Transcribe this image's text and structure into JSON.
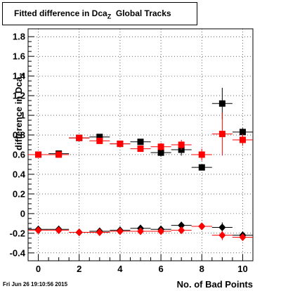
{
  "title": "Fitted difference in Dca",
  "title_sub": "Z",
  "title_suffix": "  Global Tracks",
  "ylabel": "difference in Dca",
  "ylabel_sub": "Z",
  "xlabel": "No. of Bad Points",
  "datestamp": "Fri Jun 26 19:10:56 2015",
  "chart_data": {
    "type": "scatter",
    "title": "Fitted difference in Dca Z Global Tracks",
    "xlabel": "No. of Bad Points",
    "ylabel": "difference in Dca Z",
    "xlim": [
      -0.5,
      10.5
    ],
    "ylim": [
      -0.48,
      1.88
    ],
    "xticks": [
      0,
      2,
      4,
      6,
      8,
      10
    ],
    "yticks": [
      -0.4,
      -0.2,
      0,
      0.2,
      0.4,
      0.6,
      0.8,
      1,
      1.2,
      1.4,
      1.6,
      1.8
    ],
    "ytick_labels": [
      "-0.4",
      "-0.2",
      "0",
      "0.2",
      "0.4",
      "0.6",
      "0.8",
      "1",
      "1.2",
      "1.4",
      "1.6",
      "1.8"
    ],
    "grid": true,
    "series": [
      {
        "marker": "square",
        "color": "#000000",
        "x": [
          0,
          1,
          2,
          3,
          4,
          5,
          6,
          7,
          8,
          9,
          10
        ],
        "y": [
          0.6,
          0.61,
          0.77,
          0.78,
          0.71,
          0.73,
          0.62,
          0.65,
          0.47,
          1.12,
          0.83
        ],
        "yerr": [
          0.02,
          0.02,
          0.02,
          0.03,
          0.03,
          0.03,
          0.04,
          0.06,
          0.03,
          0.16,
          0.04
        ]
      },
      {
        "marker": "square",
        "color": "#ff0000",
        "x": [
          0,
          1,
          2,
          3,
          4,
          5,
          6,
          7,
          8,
          9,
          10
        ],
        "y": [
          0.6,
          0.6,
          0.77,
          0.74,
          0.71,
          0.66,
          0.68,
          0.7,
          0.6,
          0.81,
          0.75
        ],
        "yerr": [
          0.02,
          0.02,
          0.02,
          0.02,
          0.03,
          0.03,
          0.04,
          0.05,
          0.06,
          0.22,
          0.06
        ]
      },
      {
        "marker": "diamond",
        "color": "#000000",
        "x": [
          0,
          1,
          2,
          3,
          4,
          5,
          6,
          7,
          8,
          9,
          10
        ],
        "y": [
          -0.16,
          -0.16,
          -0.19,
          -0.18,
          -0.17,
          -0.15,
          -0.16,
          -0.12,
          -0.13,
          -0.14,
          -0.22
        ],
        "yerr": [
          0.01,
          0.01,
          0.01,
          0.01,
          0.02,
          0.02,
          0.02,
          0.03,
          0.02,
          0.05,
          0.03
        ]
      },
      {
        "marker": "diamond",
        "color": "#ff0000",
        "x": [
          0,
          1,
          2,
          3,
          4,
          5,
          6,
          7,
          8,
          9,
          10
        ],
        "y": [
          -0.17,
          -0.17,
          -0.19,
          -0.19,
          -0.18,
          -0.18,
          -0.18,
          -0.17,
          -0.13,
          -0.22,
          -0.24
        ],
        "yerr": [
          0.01,
          0.01,
          0.01,
          0.01,
          0.02,
          0.02,
          0.02,
          0.03,
          0.03,
          0.05,
          0.03
        ]
      }
    ]
  }
}
